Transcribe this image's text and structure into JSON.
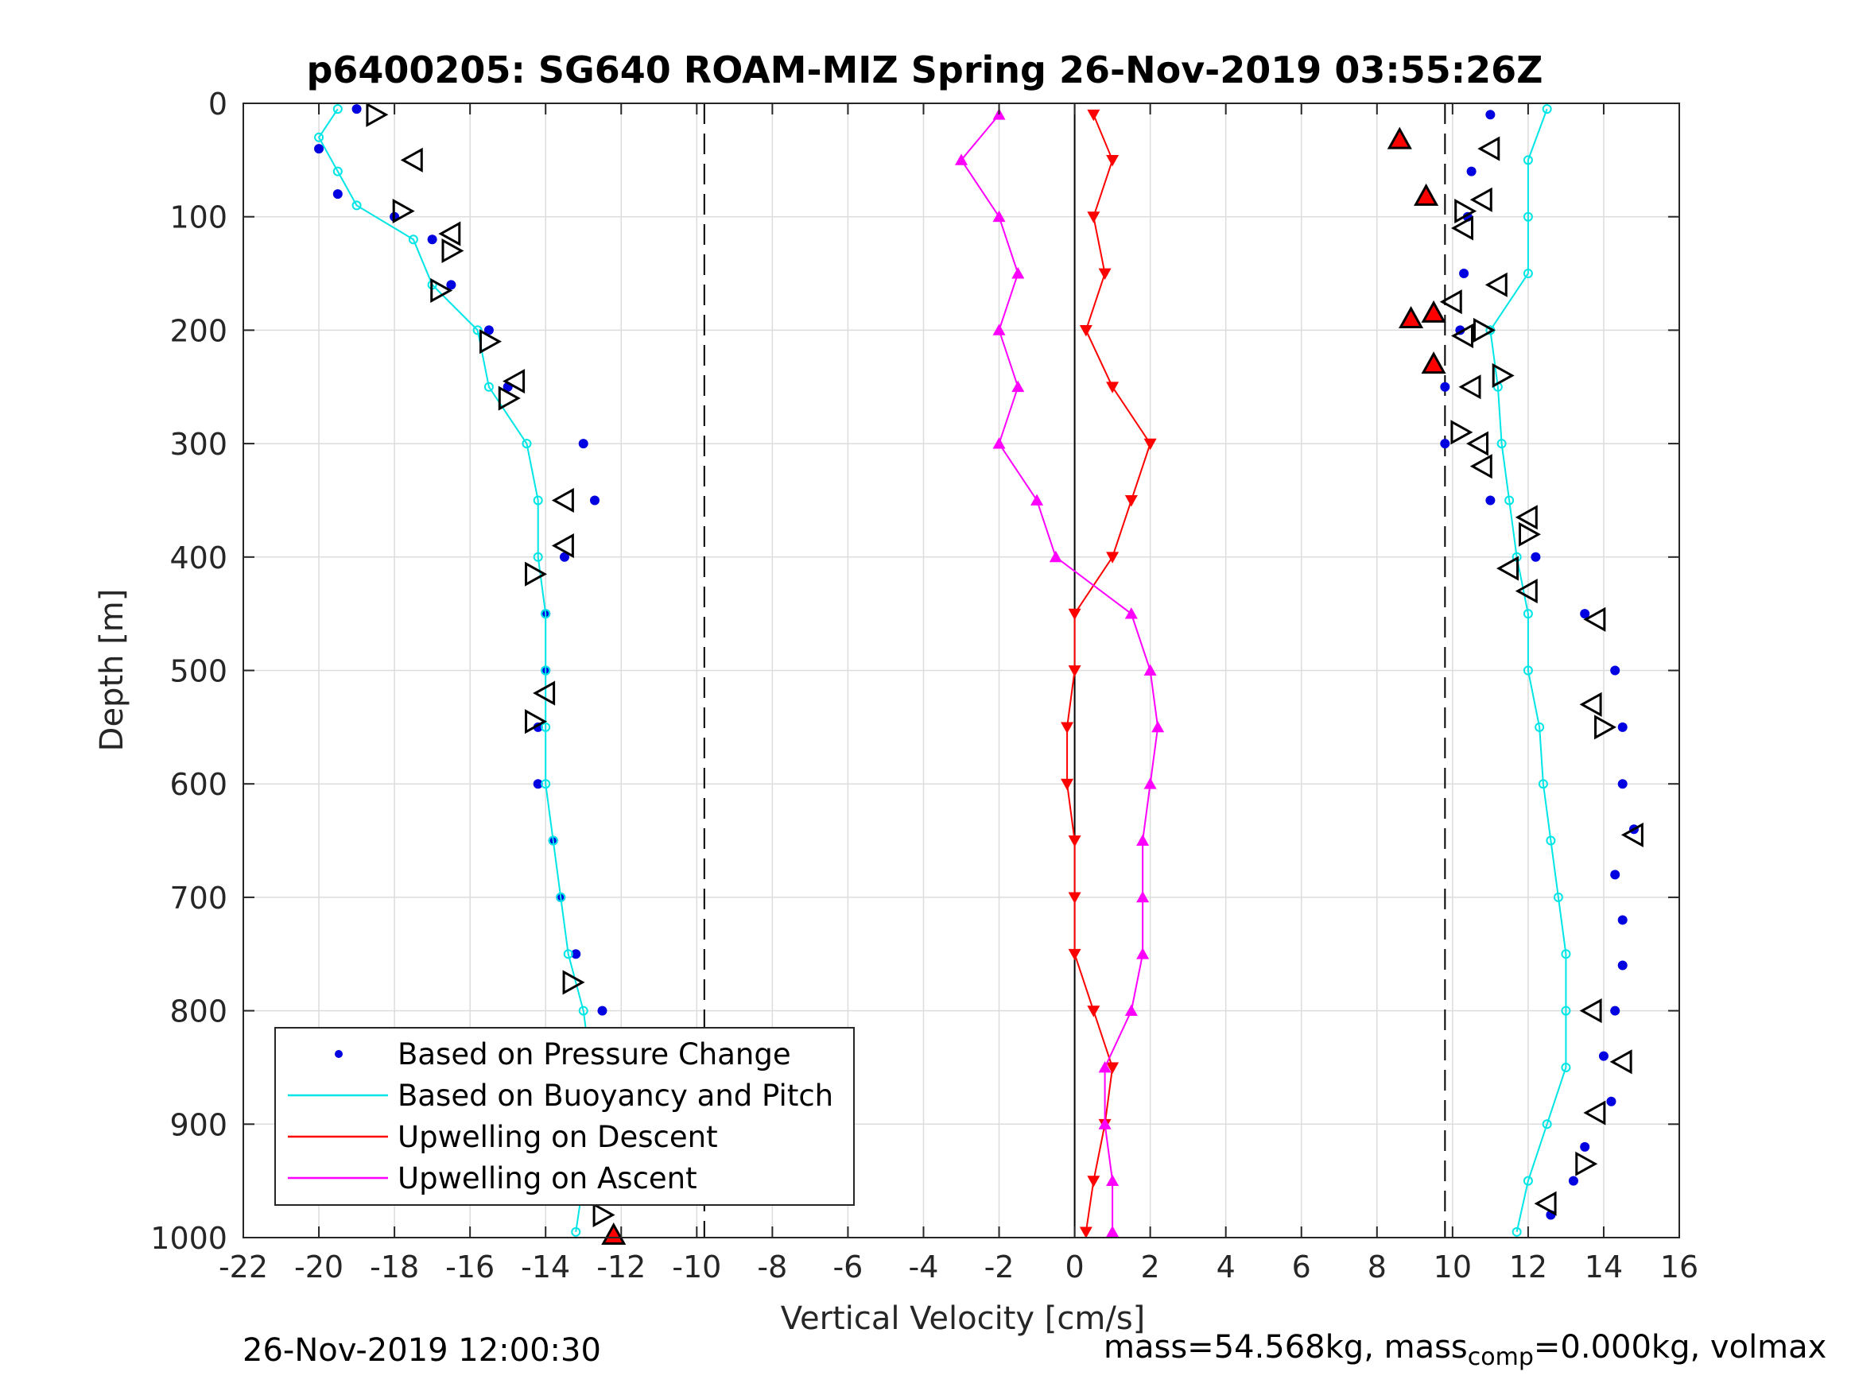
{
  "chart_data": {
    "type": "scatter",
    "title": "p6400205: SG640 ROAM-MIZ Spring 26-Nov-2019 03:55:26Z",
    "xlabel": "Vertical Velocity [cm/s]",
    "ylabel": "Depth [m]",
    "xlim": [
      -22,
      16
    ],
    "ylim": [
      0,
      1000
    ],
    "y_reversed": true,
    "xticks": [
      -22,
      -20,
      -18,
      -16,
      -14,
      -12,
      -10,
      -8,
      -6,
      -4,
      -2,
      0,
      2,
      4,
      6,
      8,
      10,
      12,
      14,
      16
    ],
    "yticks": [
      0,
      100,
      200,
      300,
      400,
      500,
      600,
      700,
      800,
      900,
      1000
    ],
    "grid": true,
    "legend_position": "bottom-left",
    "reference_lines": [
      {
        "x": -9.8,
        "style": "dashed"
      },
      {
        "x": 9.8,
        "style": "dashed"
      },
      {
        "x": 0,
        "style": "solid"
      }
    ],
    "series": [
      {
        "name": "Based on Pressure Change",
        "color": "#0000e0",
        "marker": "dot",
        "descent": [
          [
            -19,
            5
          ],
          [
            -20,
            40
          ],
          [
            -19.5,
            80
          ],
          [
            -18,
            100
          ],
          [
            -17,
            120
          ],
          [
            -16.5,
            160
          ],
          [
            -15.5,
            200
          ],
          [
            -15,
            250
          ],
          [
            -13,
            300
          ],
          [
            -12.7,
            350
          ],
          [
            -13.5,
            400
          ],
          [
            -14,
            450
          ],
          [
            -14,
            500
          ],
          [
            -14.2,
            550
          ],
          [
            -14.2,
            600
          ],
          [
            -13.8,
            650
          ],
          [
            -13.6,
            700
          ],
          [
            -13.2,
            750
          ],
          [
            -12.5,
            800
          ],
          [
            -12.2,
            850
          ],
          [
            -12.3,
            900
          ],
          [
            -12.3,
            950
          ],
          [
            -12.2,
            1000
          ]
        ],
        "ascent": [
          [
            12.6,
            980
          ],
          [
            13.2,
            950
          ],
          [
            13.5,
            920
          ],
          [
            14.2,
            880
          ],
          [
            14,
            840
          ],
          [
            14.3,
            800
          ],
          [
            14.5,
            760
          ],
          [
            14.5,
            720
          ],
          [
            14.3,
            680
          ],
          [
            14.8,
            640
          ],
          [
            14.5,
            600
          ],
          [
            14.5,
            550
          ],
          [
            14.3,
            500
          ],
          [
            13.5,
            450
          ],
          [
            12.2,
            400
          ],
          [
            11,
            350
          ],
          [
            9.8,
            300
          ],
          [
            9.8,
            250
          ],
          [
            10.2,
            200
          ],
          [
            10.3,
            150
          ],
          [
            10.4,
            100
          ],
          [
            10.5,
            60
          ],
          [
            11,
            10
          ]
        ]
      },
      {
        "name": "Based on Buoyancy and Pitch",
        "color": "#00e5e5",
        "marker": "line-circle",
        "descent": [
          [
            -19.5,
            5
          ],
          [
            -20,
            30
          ],
          [
            -19.5,
            60
          ],
          [
            -19,
            90
          ],
          [
            -17.5,
            120
          ],
          [
            -17,
            160
          ],
          [
            -15.8,
            200
          ],
          [
            -15.5,
            250
          ],
          [
            -14.5,
            300
          ],
          [
            -14.2,
            350
          ],
          [
            -14.2,
            400
          ],
          [
            -14,
            450
          ],
          [
            -14,
            500
          ],
          [
            -14,
            550
          ],
          [
            -14,
            600
          ],
          [
            -13.8,
            650
          ],
          [
            -13.6,
            700
          ],
          [
            -13.4,
            750
          ],
          [
            -13,
            800
          ],
          [
            -12.8,
            850
          ],
          [
            -12.9,
            900
          ],
          [
            -13,
            950
          ],
          [
            -13.2,
            995
          ]
        ],
        "ascent": [
          [
            11.7,
            995
          ],
          [
            12,
            950
          ],
          [
            12.5,
            900
          ],
          [
            13,
            850
          ],
          [
            13,
            800
          ],
          [
            13,
            750
          ],
          [
            12.8,
            700
          ],
          [
            12.6,
            650
          ],
          [
            12.4,
            600
          ],
          [
            12.3,
            550
          ],
          [
            12,
            500
          ],
          [
            12,
            450
          ],
          [
            11.7,
            400
          ],
          [
            11.5,
            350
          ],
          [
            11.3,
            300
          ],
          [
            11.2,
            250
          ],
          [
            11,
            200
          ],
          [
            12,
            150
          ],
          [
            12,
            100
          ],
          [
            12,
            50
          ],
          [
            12.5,
            5
          ]
        ]
      },
      {
        "name": "Upwelling on Descent",
        "color": "#ff0000",
        "marker": "triangle-down",
        "points": [
          [
            0.5,
            10
          ],
          [
            1,
            50
          ],
          [
            0.5,
            100
          ],
          [
            0.8,
            150
          ],
          [
            0.3,
            200
          ],
          [
            1,
            250
          ],
          [
            2,
            300
          ],
          [
            1.5,
            350
          ],
          [
            1,
            400
          ],
          [
            0,
            450
          ],
          [
            0,
            500
          ],
          [
            -0.2,
            550
          ],
          [
            -0.2,
            600
          ],
          [
            0,
            650
          ],
          [
            0,
            700
          ],
          [
            0,
            750
          ],
          [
            0.5,
            800
          ],
          [
            1,
            850
          ],
          [
            0.8,
            900
          ],
          [
            0.5,
            950
          ],
          [
            0.3,
            995
          ]
        ]
      },
      {
        "name": "Upwelling on Ascent",
        "color": "#ff00ff",
        "marker": "triangle-up",
        "points": [
          [
            -2,
            10
          ],
          [
            -3,
            50
          ],
          [
            -2,
            100
          ],
          [
            -1.5,
            150
          ],
          [
            -2,
            200
          ],
          [
            -1.5,
            250
          ],
          [
            -2,
            300
          ],
          [
            -1,
            350
          ],
          [
            -0.5,
            400
          ],
          [
            1.5,
            450
          ],
          [
            2,
            500
          ],
          [
            2.2,
            550
          ],
          [
            2,
            600
          ],
          [
            1.8,
            650
          ],
          [
            1.8,
            700
          ],
          [
            1.8,
            750
          ],
          [
            1.5,
            800
          ],
          [
            0.8,
            850
          ],
          [
            0.8,
            900
          ],
          [
            1,
            950
          ],
          [
            1,
            995
          ]
        ]
      }
    ],
    "markers": [
      {
        "type": "triangle-left",
        "points": [
          [
            -17.5,
            50
          ],
          [
            -16.5,
            115
          ],
          [
            -14.8,
            245
          ],
          [
            -13.5,
            390
          ],
          [
            -14,
            520
          ],
          [
            -13.5,
            350
          ],
          [
            -12.3,
            890
          ],
          [
            12,
            430
          ],
          [
            13.8,
            455
          ],
          [
            13.7,
            530
          ],
          [
            14.8,
            645
          ],
          [
            13.7,
            800
          ],
          [
            14.5,
            845
          ],
          [
            13.8,
            890
          ],
          [
            12.5,
            970
          ],
          [
            10.8,
            85
          ],
          [
            10.3,
            110
          ],
          [
            10,
            175
          ],
          [
            10.3,
            205
          ],
          [
            10.7,
            300
          ],
          [
            12,
            365
          ],
          [
            11.5,
            410
          ],
          [
            11,
            40
          ],
          [
            11.2,
            160
          ],
          [
            10.5,
            250
          ],
          [
            10.8,
            320
          ]
        ]
      },
      {
        "type": "triangle-right",
        "points": [
          [
            -18.5,
            10
          ],
          [
            -17.8,
            95
          ],
          [
            -16.5,
            130
          ],
          [
            -16.8,
            165
          ],
          [
            -15.5,
            210
          ],
          [
            -15,
            260
          ],
          [
            -14.3,
            415
          ],
          [
            -14.3,
            545
          ],
          [
            -13.3,
            775
          ],
          [
            -12.5,
            960
          ],
          [
            -12.5,
            980
          ],
          [
            12,
            380
          ],
          [
            14,
            550
          ],
          [
            13.5,
            935
          ],
          [
            10.3,
            95
          ],
          [
            10.8,
            200
          ],
          [
            10.2,
            290
          ],
          [
            11.3,
            240
          ]
        ]
      },
      {
        "type": "triangle-up-red",
        "points": [
          [
            -12.2,
            998
          ],
          [
            8.6,
            32
          ],
          [
            9.3,
            82
          ],
          [
            8.9,
            190
          ],
          [
            9.5,
            185
          ],
          [
            9.5,
            230
          ]
        ]
      }
    ]
  },
  "footer": {
    "left": "26-Nov-2019 12:00:30",
    "right_prefix": "mass=54.568kg, mass",
    "right_sub": "comp",
    "right_suffix": "=0.000kg, volmax"
  }
}
